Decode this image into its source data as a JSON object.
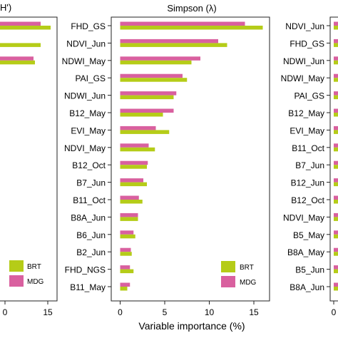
{
  "colors": {
    "BRT": "#b5cc18",
    "MDG": "#d9609f"
  },
  "xlabel": "Variable importance (%)",
  "chart_data": [
    {
      "type": "bar",
      "orientation": "horizontal",
      "title": "H')",
      "xticks": [
        "0",
        "15"
      ],
      "series_hint": "partially cropped panel (left)",
      "bars": [
        {
          "BRT": 16.0,
          "MDG": 12.5
        },
        {
          "BRT": 12.5,
          "MDG": 0
        },
        {
          "BRT": 10.5,
          "MDG": 10.0
        }
      ],
      "legend": [
        "BRT",
        "MDG"
      ]
    },
    {
      "type": "bar",
      "orientation": "horizontal",
      "title": "Simpson (λ)",
      "xlabel": "Variable importance (%)",
      "xlim": [
        -1,
        17
      ],
      "xticks": [
        0,
        5,
        10,
        15
      ],
      "legend": [
        "BRT",
        "MDG"
      ],
      "legend_position": "bottom-right",
      "categories": [
        "FHD_GS",
        "NDVI_Jun",
        "NDWI_May",
        "PAI_GS",
        "NDWI_Jun",
        "B12_May",
        "EVI_May",
        "NDVI_May",
        "B12_Oct",
        "B7_Jun",
        "B11_Oct",
        "B8A_Jun",
        "B6_Jun",
        "B2_Jun",
        "FHD_NGS",
        "B11_May"
      ],
      "series": [
        {
          "name": "MDG",
          "values": [
            14.0,
            11.0,
            9.0,
            7.0,
            6.3,
            6.0,
            4.0,
            3.2,
            3.1,
            2.6,
            2.1,
            2.0,
            1.5,
            1.2,
            1.1,
            1.1
          ]
        },
        {
          "name": "BRT",
          "values": [
            16.0,
            12.0,
            8.0,
            7.5,
            6.0,
            4.8,
            5.5,
            3.9,
            3.0,
            3.0,
            2.5,
            2.0,
            1.7,
            1.3,
            1.5,
            0.8
          ]
        }
      ]
    },
    {
      "type": "bar",
      "orientation": "horizontal",
      "title": "",
      "xticks": [
        "0"
      ],
      "categories": [
        "NDVI_Jun",
        "FHD_GS",
        "NDWI_Jun",
        "NDWI_May",
        "PAI_GS",
        "B12_May",
        "EVI_May",
        "B11_Oct",
        "B7_Jun",
        "B12_Jun",
        "B12_Oct",
        "NDVI_May",
        "B5_May",
        "B8A_May",
        "B5_Jun",
        "B8A_Jun"
      ]
    }
  ]
}
